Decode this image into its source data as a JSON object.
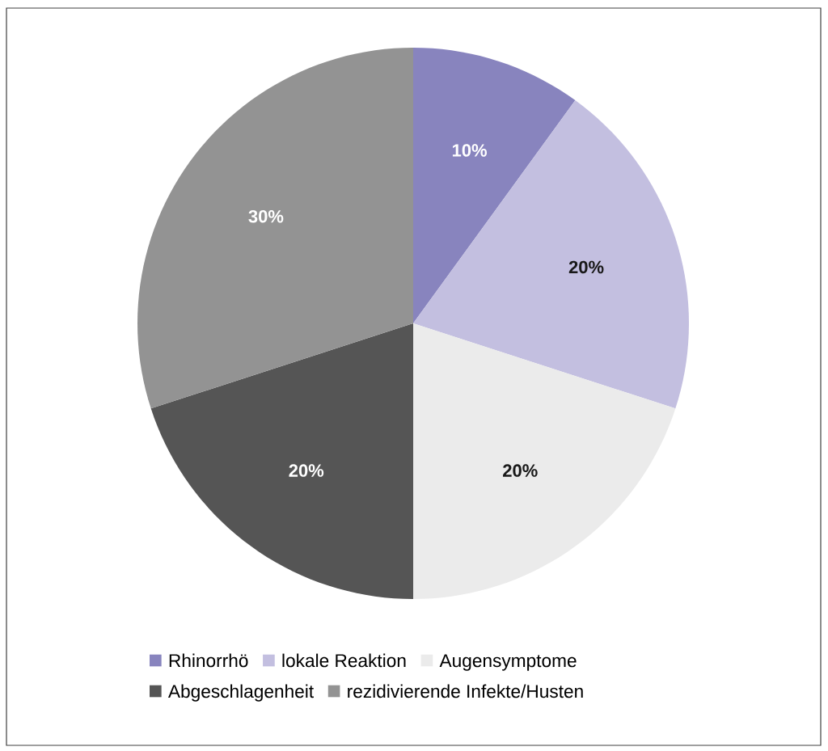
{
  "chart_data": {
    "type": "pie",
    "categories": [
      "Rhinorrhö",
      "lokale Reaktion",
      "Augensymptome",
      "Abgeschlagenheit",
      "rezidivierende Infekte/Husten"
    ],
    "values": [
      10,
      20,
      20,
      20,
      30
    ],
    "colors": [
      "#8884be",
      "#c3bfe0",
      "#ebebeb",
      "#555555",
      "#939393"
    ],
    "value_labels": [
      "10%",
      "20%",
      "20%",
      "20%",
      "30%"
    ],
    "legend": "bottom"
  }
}
